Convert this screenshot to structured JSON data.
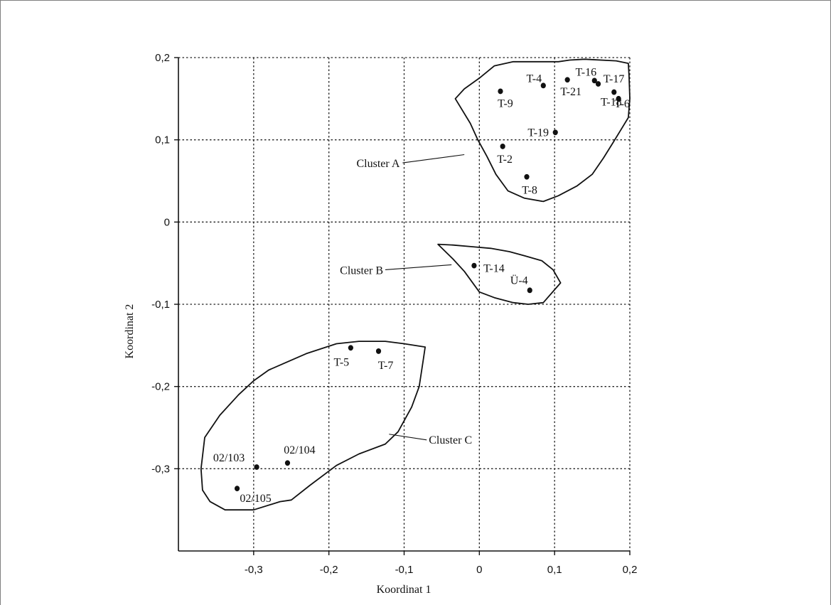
{
  "chart_data": {
    "type": "scatter",
    "xlabel": "Koordinat 1",
    "ylabel": "Koordinat 2",
    "xlim": [
      -0.4,
      0.2
    ],
    "ylim": [
      -0.4,
      0.2
    ],
    "x_ticks": [
      -0.3,
      -0.2,
      -0.1,
      0,
      0.1,
      0.2
    ],
    "y_ticks": [
      0.2,
      0.1,
      0,
      -0.1,
      -0.2,
      -0.3
    ],
    "x_tick_labels": [
      "-0,3",
      "-0,2",
      "-0,1",
      "0",
      "0,1",
      "0,2"
    ],
    "y_tick_labels": [
      "0,2",
      "0,1",
      "0",
      "-0,1",
      "-0,2",
      "-0,3"
    ],
    "grid": "dotted",
    "points": [
      {
        "label": "T-4",
        "x": 0.085,
        "y": 0.166
      },
      {
        "label": "T-16",
        "x": 0.153,
        "y": 0.172
      },
      {
        "label": "T-21",
        "x": 0.117,
        "y": 0.173
      },
      {
        "label": "T-17",
        "x": 0.158,
        "y": 0.168
      },
      {
        "label": "T-9",
        "x": 0.028,
        "y": 0.159
      },
      {
        "label": "T-18",
        "x": 0.179,
        "y": 0.158
      },
      {
        "label": "T-6",
        "x": 0.185,
        "y": 0.15
      },
      {
        "label": "T-19",
        "x": 0.101,
        "y": 0.109
      },
      {
        "label": "T-2",
        "x": 0.031,
        "y": 0.092
      },
      {
        "label": "T-8",
        "x": 0.063,
        "y": 0.055
      },
      {
        "label": "T-14",
        "x": -0.007,
        "y": -0.053
      },
      {
        "label": "Ü-4",
        "x": 0.067,
        "y": -0.083
      },
      {
        "label": "T-5",
        "x": -0.171,
        "y": -0.153
      },
      {
        "label": "T-7",
        "x": -0.134,
        "y": -0.157
      },
      {
        "label": "02/103",
        "x": -0.296,
        "y": -0.298
      },
      {
        "label": "02/104",
        "x": -0.255,
        "y": -0.293
      },
      {
        "label": "02/105",
        "x": -0.322,
        "y": -0.324
      }
    ],
    "clusters": [
      {
        "label": "Cluster A",
        "outline": [
          [
            -0.032,
            0.15
          ],
          [
            -0.012,
            0.12
          ],
          [
            -0.002,
            0.1
          ],
          [
            0.01,
            0.08
          ],
          [
            0.022,
            0.058
          ],
          [
            0.038,
            0.038
          ],
          [
            0.06,
            0.029
          ],
          [
            0.085,
            0.025
          ],
          [
            0.105,
            0.032
          ],
          [
            0.13,
            0.044
          ],
          [
            0.15,
            0.058
          ],
          [
            0.165,
            0.078
          ],
          [
            0.178,
            0.097
          ],
          [
            0.188,
            0.112
          ],
          [
            0.198,
            0.127
          ],
          [
            0.2,
            0.15
          ],
          [
            0.199,
            0.178
          ],
          [
            0.198,
            0.193
          ],
          [
            0.182,
            0.196
          ],
          [
            0.14,
            0.198
          ],
          [
            0.12,
            0.197
          ],
          [
            0.105,
            0.195
          ],
          [
            0.075,
            0.195
          ],
          [
            0.045,
            0.195
          ],
          [
            0.02,
            0.19
          ],
          [
            0.0,
            0.175
          ],
          [
            -0.02,
            0.162
          ],
          [
            -0.032,
            0.15
          ]
        ],
        "leader_from": [
          -0.102,
          0.072
        ],
        "leader_to": [
          -0.02,
          0.082
        ]
      },
      {
        "label": "Cluster B",
        "outline": [
          [
            -0.055,
            -0.027
          ],
          [
            -0.035,
            -0.045
          ],
          [
            -0.02,
            -0.06
          ],
          [
            0.0,
            -0.085
          ],
          [
            0.02,
            -0.092
          ],
          [
            0.045,
            -0.098
          ],
          [
            0.065,
            -0.1
          ],
          [
            0.085,
            -0.098
          ],
          [
            0.108,
            -0.074
          ],
          [
            0.098,
            -0.058
          ],
          [
            0.083,
            -0.047
          ],
          [
            0.06,
            -0.041
          ],
          [
            0.04,
            -0.036
          ],
          [
            0.015,
            -0.032
          ],
          [
            -0.01,
            -0.03
          ],
          [
            -0.035,
            -0.028
          ],
          [
            -0.055,
            -0.027
          ]
        ],
        "leader_from": [
          -0.125,
          -0.058
        ],
        "leader_to": [
          -0.037,
          -0.052
        ]
      },
      {
        "label": "Cluster C",
        "outline": [
          [
            -0.072,
            -0.152
          ],
          [
            -0.075,
            -0.17
          ],
          [
            -0.08,
            -0.2
          ],
          [
            -0.09,
            -0.225
          ],
          [
            -0.108,
            -0.255
          ],
          [
            -0.125,
            -0.27
          ],
          [
            -0.16,
            -0.282
          ],
          [
            -0.19,
            -0.296
          ],
          [
            -0.225,
            -0.32
          ],
          [
            -0.25,
            -0.338
          ],
          [
            -0.265,
            -0.34
          ],
          [
            -0.3,
            -0.35
          ],
          [
            -0.338,
            -0.35
          ],
          [
            -0.358,
            -0.34
          ],
          [
            -0.368,
            -0.326
          ],
          [
            -0.37,
            -0.3
          ],
          [
            -0.365,
            -0.262
          ],
          [
            -0.345,
            -0.235
          ],
          [
            -0.32,
            -0.21
          ],
          [
            -0.3,
            -0.193
          ],
          [
            -0.28,
            -0.18
          ],
          [
            -0.23,
            -0.16
          ],
          [
            -0.19,
            -0.148
          ],
          [
            -0.16,
            -0.145
          ],
          [
            -0.125,
            -0.145
          ],
          [
            -0.1,
            -0.148
          ],
          [
            -0.072,
            -0.152
          ]
        ],
        "leader_from": [
          -0.07,
          -0.265
        ],
        "leader_to": [
          -0.12,
          -0.258
        ]
      }
    ]
  }
}
